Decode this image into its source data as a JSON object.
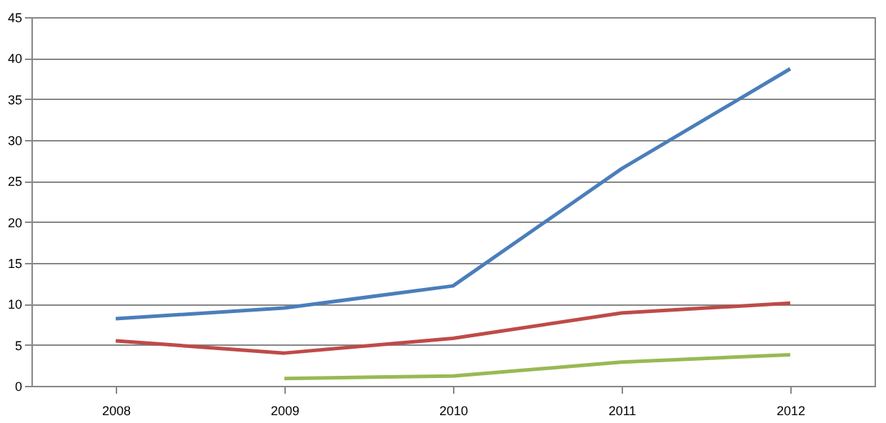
{
  "chart_data": {
    "type": "line",
    "categories": [
      "2008",
      "2009",
      "2010",
      "2011",
      "2012"
    ],
    "series": [
      {
        "color": "#4a7ebb",
        "values": [
          8.2,
          9.5,
          12.2,
          26.5,
          38.7
        ]
      },
      {
        "color": "#be4b48",
        "values": [
          5.5,
          4.0,
          5.8,
          8.9,
          10.1
        ]
      },
      {
        "color": "#98b954",
        "values": [
          null,
          0.9,
          1.2,
          2.9,
          3.8
        ]
      }
    ],
    "ylim": [
      0,
      45
    ],
    "yticks": [
      0,
      5,
      10,
      15,
      20,
      25,
      30,
      35,
      40,
      45
    ],
    "grid": "y",
    "marker": "none",
    "line_style": "solid"
  }
}
